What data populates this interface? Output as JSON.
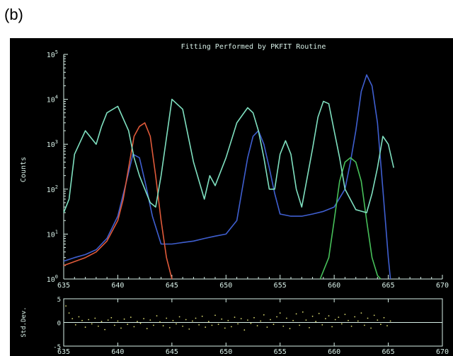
{
  "panel_label": "(b)",
  "chart_data": [
    {
      "type": "line",
      "title": "Fitting Performed by PKFIT Routine",
      "xlabel": "",
      "ylabel": "Counts",
      "y_scale": "log",
      "xlim": [
        635,
        670
      ],
      "ylim": [
        1,
        100000
      ],
      "grid": false,
      "background": "#000000",
      "x_ticks": [
        "635",
        "640",
        "645",
        "650",
        "655",
        "660",
        "665",
        "670"
      ],
      "y_ticks": [
        {
          "base": "10",
          "exp": "0"
        },
        {
          "base": "10",
          "exp": "1"
        },
        {
          "base": "10",
          "exp": "2"
        },
        {
          "base": "10",
          "exp": "3"
        },
        {
          "base": "10",
          "exp": "4"
        },
        {
          "base": "10",
          "exp": "5"
        }
      ],
      "series": [
        {
          "color": "#3f5fd0",
          "x": [
            635.0,
            636.0,
            637.0,
            638.0,
            639.0,
            640.0,
            640.8,
            641.4,
            642.0,
            642.6,
            643.2,
            644.0,
            645.0,
            646.0,
            647.0,
            648.0,
            649.0,
            650.0,
            651.0,
            651.5,
            652.0,
            652.5,
            653.0,
            653.5,
            654.0,
            654.5,
            655.0,
            656.0,
            657.0,
            658.0,
            659.0,
            660.0,
            661.0,
            661.5,
            662.0,
            662.5,
            663.0,
            663.5,
            664.0,
            664.5,
            665.0,
            665.2
          ],
          "y": [
            2.5,
            3,
            3.5,
            4.5,
            8,
            25,
            150,
            600,
            500,
            120,
            25,
            6,
            6,
            6.5,
            7,
            8,
            9,
            10,
            20,
            100,
            500,
            1500,
            2000,
            1000,
            300,
            80,
            28,
            25,
            25,
            28,
            32,
            40,
            100,
            400,
            2000,
            15000,
            35000,
            20000,
            3000,
            100,
            3,
            1
          ]
        },
        {
          "color": "#e05a3a",
          "x": [
            635.0,
            637.0,
            638.0,
            639.0,
            640.0,
            640.5,
            641.0,
            641.5,
            642.0,
            642.5,
            643.0,
            643.5,
            644.0,
            644.5,
            645.0
          ],
          "y": [
            2,
            3,
            4,
            7,
            20,
            60,
            300,
            1500,
            2500,
            3000,
            1500,
            200,
            20,
            3,
            1
          ]
        },
        {
          "color": "#47c05a",
          "x": [
            658.7,
            659.5,
            660.0,
            660.5,
            661.0,
            661.5,
            662.0,
            662.5,
            663.0,
            663.5,
            664.0,
            664.3
          ],
          "y": [
            1,
            3,
            20,
            150,
            400,
            500,
            400,
            150,
            20,
            3,
            1.2,
            1
          ]
        },
        {
          "color": "#7fe0c0",
          "x": [
            635.0,
            635.5,
            636.0,
            637.0,
            638.0,
            638.5,
            639.0,
            640.0,
            641.0,
            641.5,
            642.0,
            642.5,
            643.0,
            643.5,
            644.0,
            645.0,
            646.0,
            647.0,
            648.0,
            648.5,
            649.0,
            650.0,
            651.0,
            652.0,
            652.5,
            653.0,
            653.5,
            654.0,
            654.5,
            655.0,
            655.5,
            656.0,
            656.5,
            657.0,
            658.0,
            658.5,
            659.0,
            659.5,
            660.0,
            660.5,
            661.0,
            662.0,
            663.0,
            663.5,
            664.0,
            664.5,
            665.0,
            665.5
          ],
          "y": [
            30,
            60,
            600,
            2000,
            1000,
            2500,
            5000,
            7000,
            2000,
            500,
            200,
            100,
            50,
            40,
            200,
            10000,
            6000,
            400,
            60,
            200,
            120,
            500,
            3000,
            6500,
            5000,
            2000,
            500,
            100,
            100,
            600,
            1200,
            600,
            100,
            40,
            800,
            4000,
            9000,
            8000,
            2000,
            500,
            100,
            35,
            30,
            80,
            300,
            1500,
            1000,
            300
          ]
        }
      ]
    },
    {
      "type": "scatter",
      "xlabel": "",
      "ylabel": "Std.Dev.",
      "xlim": [
        635,
        670
      ],
      "ylim": [
        -5,
        5
      ],
      "background": "#000000",
      "x_ticks": [
        "635",
        "640",
        "645",
        "650",
        "655",
        "660",
        "665",
        "670"
      ],
      "y_ticks": [
        "5",
        "0",
        "-5"
      ],
      "reference_line_y": 0,
      "series": [
        {
          "color": "#d8d870",
          "x": [
            635.2,
            635.5,
            635.8,
            636.1,
            636.4,
            636.7,
            637.0,
            637.3,
            637.6,
            637.9,
            638.2,
            638.5,
            638.8,
            639.1,
            639.4,
            639.7,
            640.0,
            640.3,
            640.6,
            640.9,
            641.2,
            641.5,
            641.8,
            642.1,
            642.4,
            642.7,
            643.0,
            643.3,
            643.6,
            643.9,
            644.2,
            644.5,
            644.8,
            645.1,
            645.4,
            645.7,
            646.0,
            646.3,
            646.6,
            646.9,
            647.2,
            647.5,
            647.8,
            648.1,
            648.4,
            648.7,
            649.0,
            649.3,
            649.6,
            649.9,
            650.2,
            650.5,
            650.8,
            651.1,
            651.4,
            651.7,
            652.0,
            652.3,
            652.6,
            652.9,
            653.2,
            653.5,
            653.8,
            654.1,
            654.4,
            654.7,
            655.0,
            655.3,
            655.6,
            655.9,
            656.2,
            656.5,
            656.8,
            657.1,
            657.4,
            657.7,
            658.0,
            658.3,
            658.6,
            658.9,
            659.2,
            659.5,
            659.8,
            660.1,
            660.4,
            660.7,
            661.0,
            661.3,
            661.6,
            661.9,
            662.2,
            662.5,
            662.8,
            663.1,
            663.4,
            663.7,
            664.0,
            664.3,
            664.6,
            664.9,
            665.2
          ],
          "y": [
            3.5,
            2.0,
            0.8,
            -0.5,
            1.2,
            0.4,
            -1.0,
            0.6,
            -0.3,
            0.9,
            -0.8,
            0.2,
            -1.5,
            0.5,
            1.0,
            -0.6,
            0.3,
            -1.2,
            0.7,
            -0.4,
            1.1,
            -0.9,
            0.2,
            -0.2,
            0.8,
            -1.3,
            0.5,
            -0.6,
            1.4,
            0.1,
            -0.7,
            0.9,
            -1.1,
            0.4,
            -0.3,
            1.2,
            -0.8,
            0.6,
            -1.4,
            0.3,
            0.9,
            -0.5,
            1.3,
            -1.0,
            0.2,
            -0.6,
            1.5,
            -0.4,
            0.7,
            -1.2,
            0.4,
            -0.9,
            1.1,
            -0.3,
            0.8,
            -1.6,
            0.5,
            -0.2,
            1.0,
            -0.7,
            0.3,
            1.6,
            -1.0,
            0.6,
            -0.4,
            1.2,
            2.0,
            -0.8,
            0.9,
            -1.3,
            0.4,
            1.8,
            -0.6,
            2.2,
            0.5,
            -1.1,
            1.3,
            0.2,
            1.9,
            -0.5,
            0.8,
            1.4,
            -0.9,
            0.6,
            1.1,
            -0.3,
            1.7,
            0.4,
            -0.8,
            1.2,
            0.3,
            2.0,
            -0.6,
            0.9,
            -1.2,
            1.5,
            0.5,
            -0.4,
            1.0,
            -0.7,
            0.3
          ]
        }
      ]
    }
  ]
}
